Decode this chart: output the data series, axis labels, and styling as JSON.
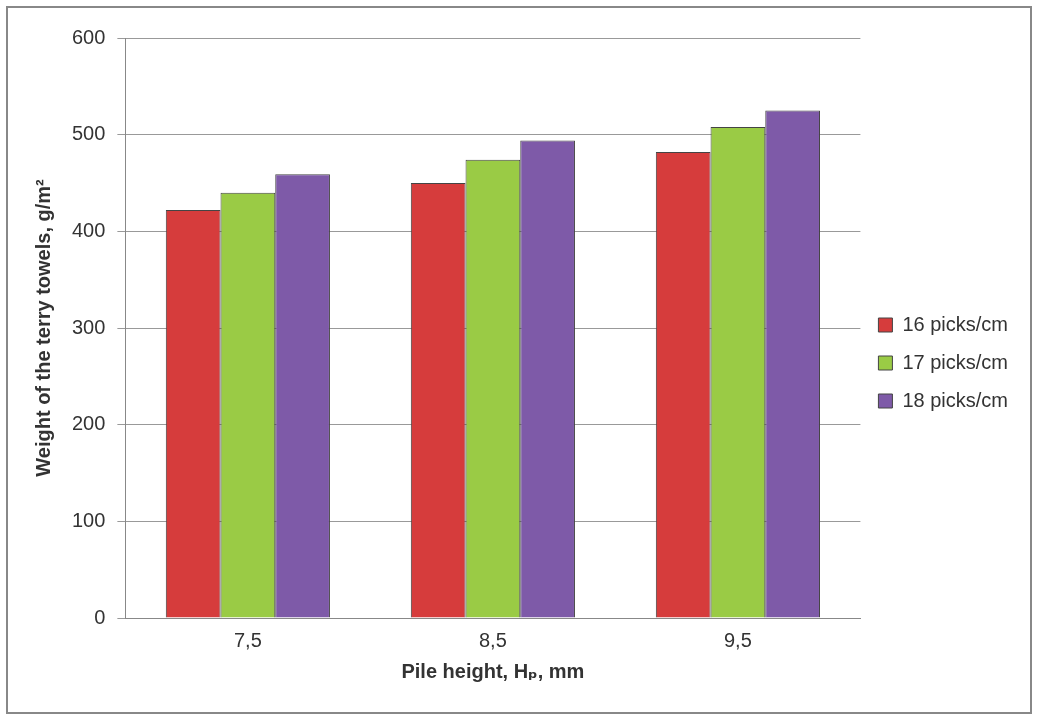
{
  "chart_data": {
    "type": "bar",
    "xlabel": "Pile height, Hₚ, mm",
    "ylabel": "Weight of the terry towels, g/m²",
    "categories": [
      "7,5",
      "8,5",
      "9,5"
    ],
    "series": [
      {
        "name": "16 picks/cm",
        "color": "#d63c3c",
        "values": [
          422,
          450,
          482
        ]
      },
      {
        "name": "17 picks/cm",
        "color": "#9acb45",
        "values": [
          440,
          474,
          508
        ]
      },
      {
        "name": "18 picks/cm",
        "color": "#7e5aa8",
        "values": [
          459,
          494,
          525
        ]
      }
    ],
    "ylim": [
      0,
      600
    ],
    "yticks": [
      0,
      100,
      200,
      300,
      400,
      500,
      600
    ],
    "grid": "y",
    "legend": "right"
  }
}
